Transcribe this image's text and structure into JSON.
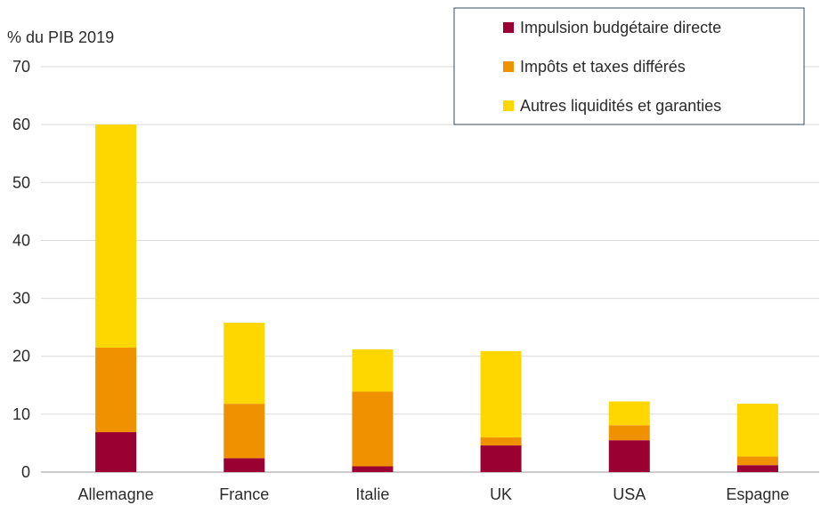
{
  "chart_data": {
    "type": "bar",
    "stacked": true,
    "ylabel": "% du PIB 2019",
    "ylim": [
      0,
      70
    ],
    "yticks": [
      0,
      10,
      20,
      30,
      40,
      50,
      60,
      70
    ],
    "grid": true,
    "legend_position": "top-right",
    "categories": [
      "Allemagne",
      "France",
      "Italie",
      "UK",
      "USA",
      "Espagne"
    ],
    "series": [
      {
        "name": "Impulsion budgétaire directe",
        "color": "#9b0032",
        "values": [
          6.9,
          2.4,
          1.0,
          4.6,
          5.5,
          1.2
        ]
      },
      {
        "name": "Impôts et taxes différés",
        "color": "#f09200",
        "values": [
          14.6,
          9.4,
          12.9,
          1.4,
          2.6,
          1.5
        ]
      },
      {
        "name": "Autres liquidités et garanties",
        "color": "#ffd700",
        "values": [
          38.5,
          14.0,
          7.3,
          14.9,
          4.1,
          9.1
        ]
      }
    ]
  }
}
